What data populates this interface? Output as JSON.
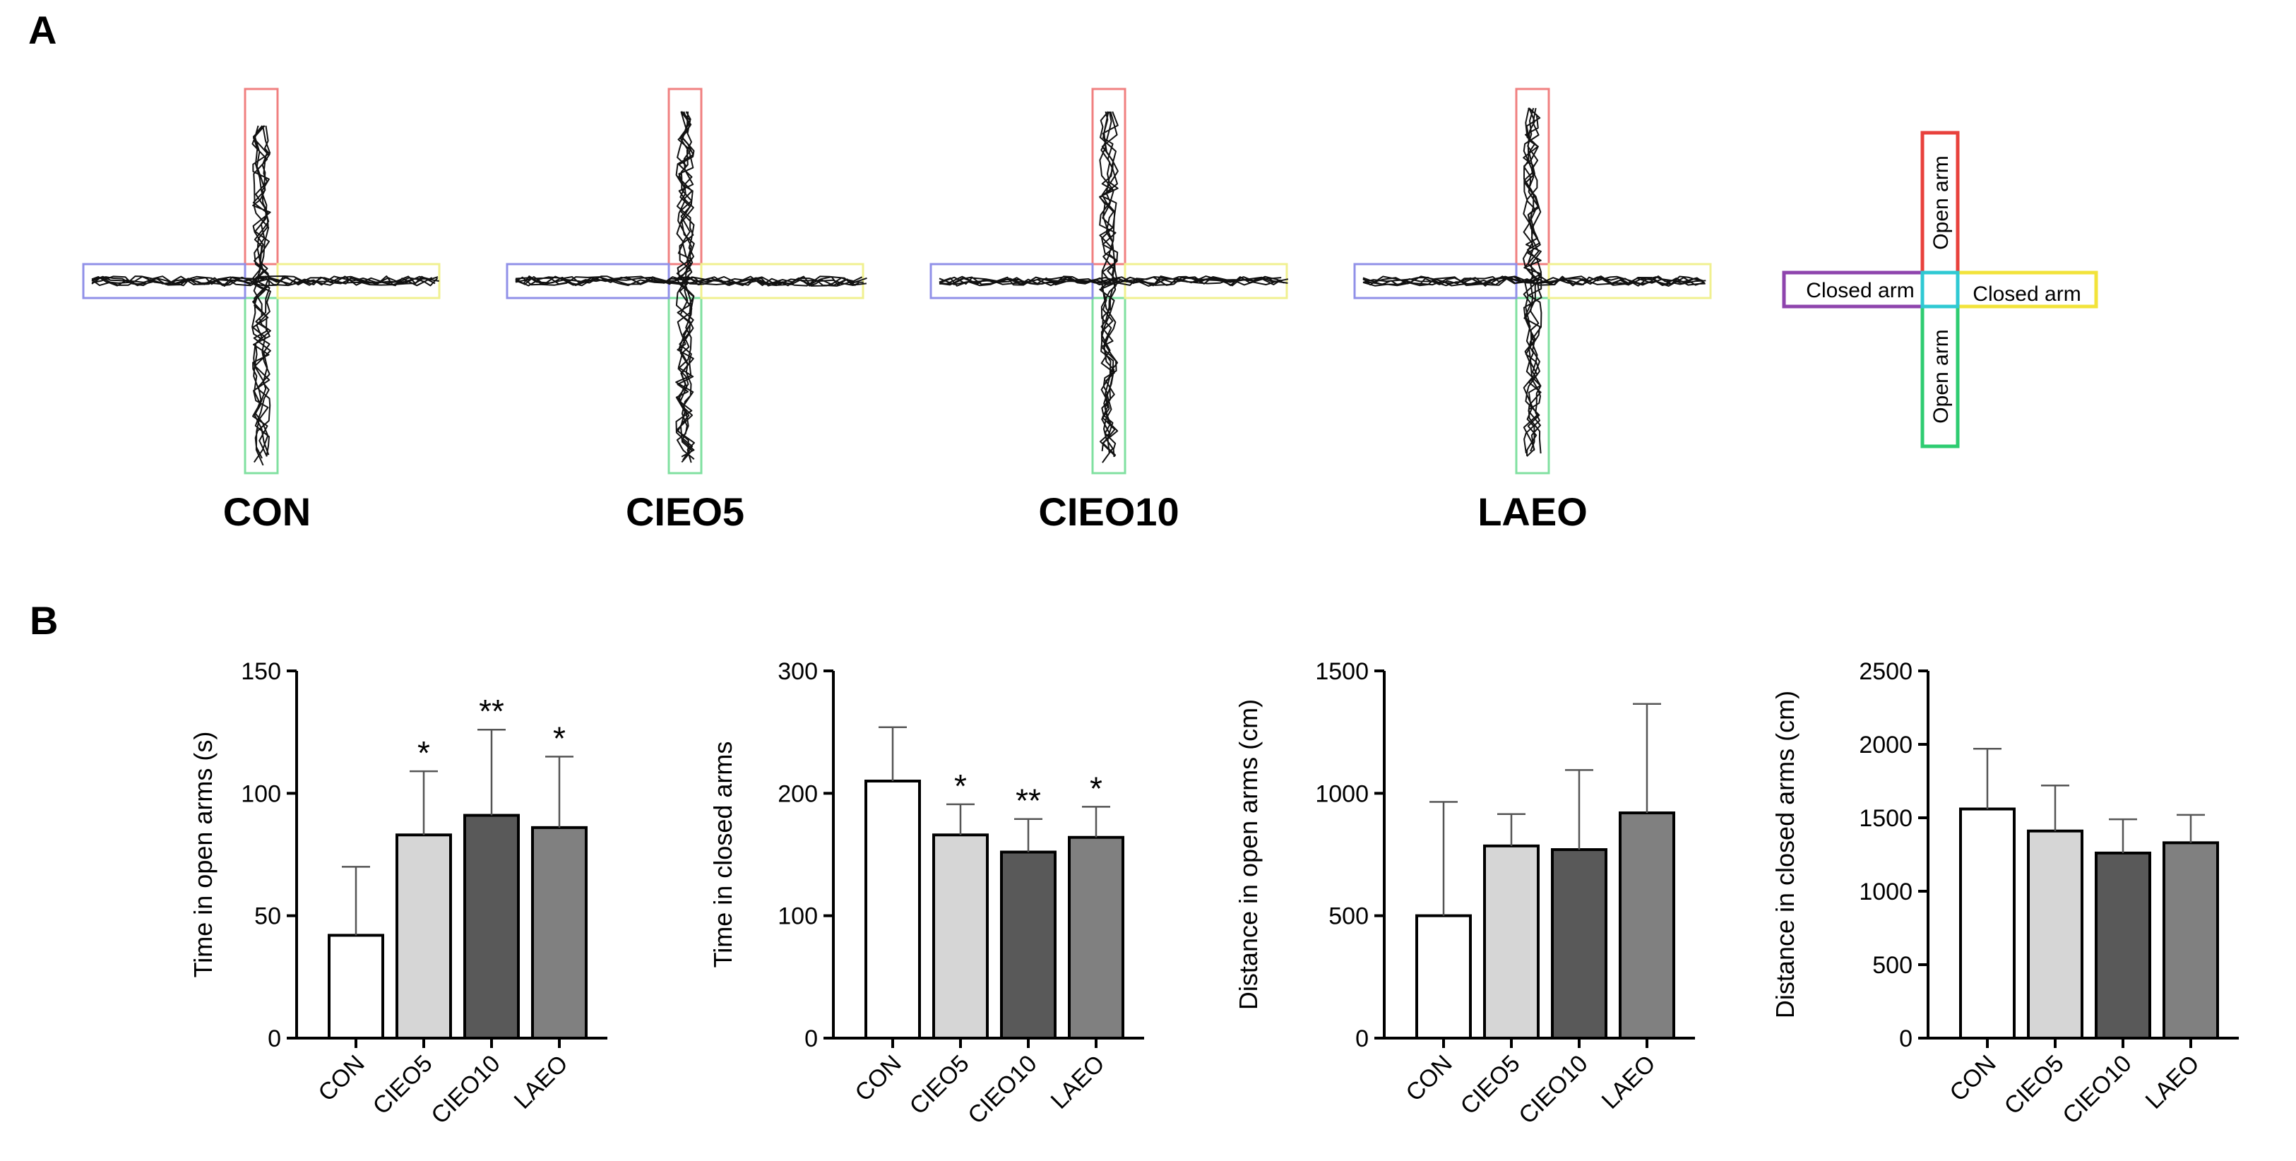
{
  "panel_a": {
    "letter": "A",
    "conditions": [
      "CON",
      "CIEO5",
      "CIEO10",
      "LAEO"
    ],
    "legend": {
      "labels": [
        "Open arm",
        "Closed arm",
        "Open arm",
        "Closed arm"
      ],
      "colors": {
        "top": "#e8413c",
        "left": "#8e44ad",
        "right": "#f2e33a",
        "bottom": "#2ecc71",
        "center": "#2fc9d3"
      }
    },
    "arm_colors": {
      "top": "#f08080",
      "left": "#9090e8",
      "right": "#f0f090",
      "bottom": "#80e0a0"
    }
  },
  "panel_b": {
    "letter": "B"
  },
  "chart_data": [
    {
      "type": "bar",
      "categories": [
        "CON",
        "CIEO5",
        "CIEO10",
        "LAEO"
      ],
      "values": [
        42,
        83,
        91,
        86
      ],
      "errors": [
        28,
        26,
        35,
        29
      ],
      "significance": [
        "",
        "*",
        "**",
        "*"
      ],
      "ylabel": "Time in open arms (s)",
      "ylim": [
        0,
        150
      ],
      "yticks": [
        0,
        50,
        100,
        150
      ]
    },
    {
      "type": "bar",
      "categories": [
        "CON",
        "CIEO5",
        "CIEO10",
        "LAEO"
      ],
      "values": [
        210,
        166,
        152,
        164
      ],
      "errors": [
        44,
        25,
        27,
        25
      ],
      "significance": [
        "",
        "*",
        "**",
        "*"
      ],
      "ylabel": "Time in closed arms",
      "ylim": [
        0,
        300
      ],
      "yticks": [
        0,
        100,
        200,
        300
      ]
    },
    {
      "type": "bar",
      "categories": [
        "CON",
        "CIEO5",
        "CIEO10",
        "LAEO"
      ],
      "values": [
        500,
        785,
        770,
        920
      ],
      "errors": [
        465,
        130,
        325,
        445
      ],
      "significance": [
        "",
        "",
        "",
        ""
      ],
      "ylabel": "Distance  in open arms (cm)",
      "ylim": [
        0,
        1500
      ],
      "yticks": [
        0,
        500,
        1000,
        1500
      ]
    },
    {
      "type": "bar",
      "categories": [
        "CON",
        "CIEO5",
        "CIEO10",
        "LAEO"
      ],
      "values": [
        1560,
        1410,
        1260,
        1330
      ],
      "errors": [
        410,
        310,
        230,
        190
      ],
      "significance": [
        "",
        "",
        "",
        ""
      ],
      "ylabel": "Distance in closed arms (cm)",
      "ylim": [
        0,
        2500
      ],
      "yticks": [
        0,
        500,
        1000,
        1500,
        2000,
        2500
      ]
    }
  ],
  "bar_colors": [
    "#ffffff",
    "#d6d6d6",
    "#595959",
    "#808080"
  ]
}
